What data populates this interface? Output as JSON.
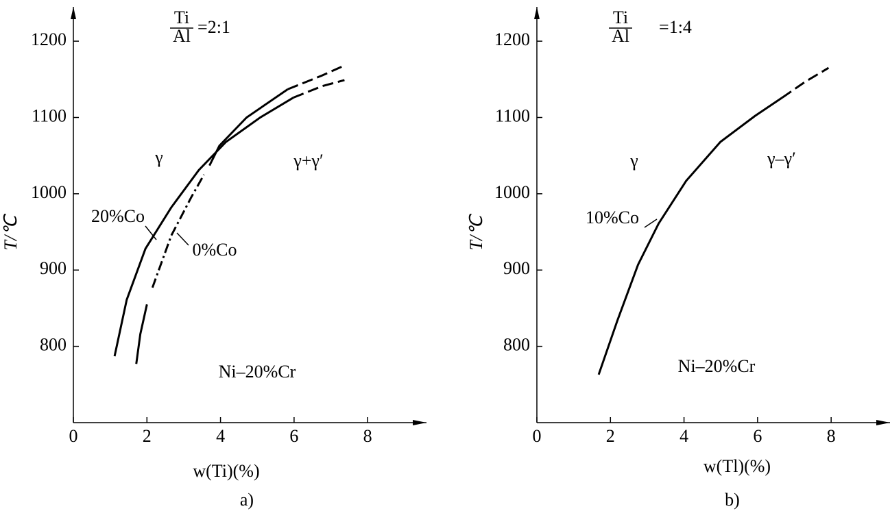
{
  "chart_data": [
    {
      "type": "line",
      "caption": "a)",
      "ratio": {
        "numerator": "Ti",
        "denominator": "Al",
        "value": "=2:1"
      },
      "annotations": [
        "γ",
        "γ+γ′",
        "Ni–20%Cr"
      ],
      "xlabel": "w(Ti)(%)",
      "ylabel": "T/℃",
      "xlim": [
        0,
        9.6
      ],
      "ylim": [
        700,
        1245
      ],
      "xticks": [
        0,
        2,
        4,
        6,
        8
      ],
      "yticks": [
        800,
        900,
        1000,
        1100,
        1200
      ],
      "series": [
        {
          "name": "20%Co",
          "color": "#000000",
          "pieces": [
            {
              "dash": "solid",
              "x": [
                1.12,
                1.45,
                1.96,
                2.66,
                3.41,
                4.15,
                5.08,
                5.98
              ],
              "values": [
                787,
                861,
                928,
                982,
                1031,
                1068,
                1100,
                1126
              ]
            },
            {
              "dash": "dashed",
              "x": [
                5.98,
                6.76,
                7.37
              ],
              "values": [
                1126,
                1141,
                1149
              ]
            }
          ]
        },
        {
          "name": "0%Co",
          "color": "#000000",
          "pieces": [
            {
              "dash": "solid",
              "x": [
                1.71,
                1.82,
                2.0
              ],
              "values": [
                777,
                816,
                855
              ]
            },
            {
              "dash": "dashdot",
              "x": [
                2.15,
                2.66,
                3.2,
                3.55
              ],
              "values": [
                877,
                945,
                995,
                1025
              ]
            },
            {
              "dash": "solid",
              "x": [
                3.7,
                3.97,
                4.71,
                5.83
              ],
              "values": [
                1037,
                1063,
                1100,
                1137
              ]
            },
            {
              "dash": "dashed",
              "x": [
                5.83,
                6.76,
                7.41
              ],
              "values": [
                1137,
                1155,
                1169
              ]
            }
          ]
        }
      ]
    },
    {
      "type": "line",
      "caption": "b)",
      "ratio": {
        "numerator": "Ti",
        "denominator": "Al",
        "value": "=1:4"
      },
      "annotations": [
        "γ",
        "γ–γ′",
        "Ni–20%Cr"
      ],
      "xlabel": "w(Tl)(%)",
      "ylabel": "T/℃",
      "xlim": [
        0,
        9.6
      ],
      "ylim": [
        700,
        1245
      ],
      "xticks": [
        0,
        2,
        4,
        6,
        8
      ],
      "yticks": [
        800,
        900,
        1000,
        1100,
        1200
      ],
      "series": [
        {
          "name": "10%Co",
          "color": "#000000",
          "pieces": [
            {
              "dash": "solid",
              "x": [
                1.68,
                2.19,
                2.75,
                3.31,
                4.06,
                4.99,
                5.93,
                6.67
              ],
              "values": [
                763,
                834,
                907,
                961,
                1017,
                1068,
                1102,
                1126
              ]
            },
            {
              "dash": "dashed",
              "x": [
                6.67,
                7.3,
                7.93
              ],
              "values": [
                1126,
                1147,
                1165
              ]
            }
          ]
        }
      ]
    }
  ]
}
